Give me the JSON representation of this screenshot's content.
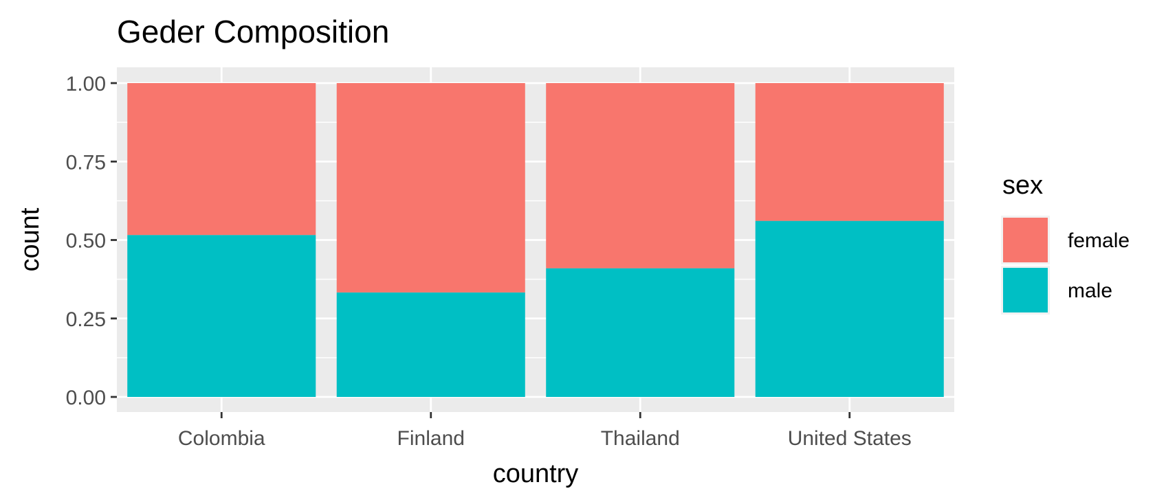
{
  "chart_data": {
    "type": "bar",
    "stacked": true,
    "title": "Geder Composition",
    "xlabel": "country",
    "ylabel": "count",
    "ylim": [
      0,
      1
    ],
    "yticks": [
      "0.00",
      "0.25",
      "0.50",
      "0.75",
      "1.00"
    ],
    "categories": [
      "Colombia",
      "Finland",
      "Thailand",
      "United States"
    ],
    "series": [
      {
        "name": "male",
        "values": [
          0.516,
          0.333,
          0.41,
          0.561
        ]
      },
      {
        "name": "female",
        "values": [
          0.484,
          0.667,
          0.59,
          0.439
        ]
      }
    ],
    "legend": {
      "title": "sex",
      "position": "right",
      "entries": [
        "female",
        "male"
      ]
    },
    "colors": {
      "female": "#F8766D",
      "male": "#00BFC4",
      "panel": "#EBEBEB",
      "grid": "#FFFFFF"
    },
    "grid": true
  }
}
